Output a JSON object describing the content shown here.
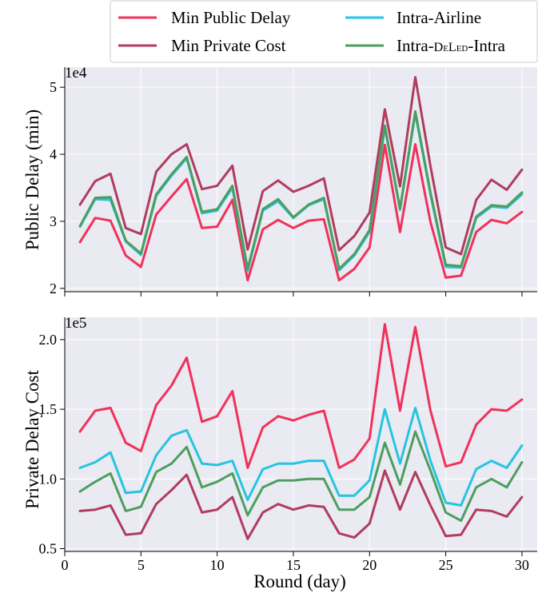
{
  "chart_data": [
    {
      "type": "line",
      "ylabel": "Public Delay (min)",
      "multiplier": "1e4",
      "ylim": [
        1.95,
        5.3
      ],
      "yticks": [
        2,
        3,
        4,
        5
      ],
      "x": [
        1,
        2,
        3,
        4,
        5,
        6,
        7,
        8,
        9,
        10,
        11,
        12,
        13,
        14,
        15,
        16,
        17,
        18,
        19,
        20,
        21,
        22,
        23,
        24,
        25,
        26,
        27,
        28,
        29,
        30
      ],
      "xlim": [
        0,
        31
      ],
      "grid": true,
      "series": [
        {
          "name": "Min Public Delay",
          "color": "#f0325a",
          "values": [
            2.69,
            3.05,
            3.01,
            2.49,
            2.32,
            3.1,
            3.37,
            3.63,
            2.9,
            2.92,
            3.32,
            2.12,
            2.88,
            3.02,
            2.9,
            3.01,
            3.03,
            2.12,
            2.29,
            2.61,
            4.14,
            2.84,
            4.15,
            2.99,
            2.16,
            2.19,
            2.84,
            3.02,
            2.97,
            3.14
          ]
        },
        {
          "name": "Min Private Cost",
          "color": "#b03c5f",
          "values": [
            3.25,
            3.6,
            3.71,
            2.9,
            2.81,
            3.74,
            4.0,
            4.15,
            3.48,
            3.53,
            3.83,
            2.58,
            3.45,
            3.61,
            3.44,
            3.53,
            3.64,
            2.57,
            2.78,
            3.13,
            4.67,
            3.52,
            5.15,
            3.82,
            2.61,
            2.51,
            3.32,
            3.62,
            3.47,
            3.77
          ]
        },
        {
          "name": "Intra-Airline",
          "color": "#27c4e0",
          "values": [
            2.92,
            3.33,
            3.32,
            2.7,
            2.5,
            3.38,
            3.68,
            3.94,
            3.12,
            3.16,
            3.5,
            2.26,
            3.16,
            3.3,
            3.05,
            3.24,
            3.33,
            2.27,
            2.49,
            2.84,
            4.4,
            3.17,
            4.61,
            3.4,
            2.32,
            2.31,
            3.05,
            3.22,
            3.2,
            3.4
          ]
        },
        {
          "name": "Intra-DeLed-Intra",
          "color": "#4d9e5e",
          "values": [
            2.93,
            3.35,
            3.36,
            2.71,
            2.52,
            3.4,
            3.7,
            3.96,
            3.14,
            3.18,
            3.53,
            2.29,
            3.18,
            3.33,
            3.06,
            3.25,
            3.35,
            2.29,
            2.51,
            2.87,
            4.43,
            3.19,
            4.64,
            3.43,
            2.35,
            2.33,
            3.07,
            3.24,
            3.22,
            3.43
          ]
        }
      ]
    },
    {
      "type": "line",
      "ylabel": "Private Delay Cost",
      "xlabel": "Round (day)",
      "multiplier": "1e5",
      "ylim": [
        0.48,
        2.16
      ],
      "yticks": [
        0.5,
        1.0,
        1.5,
        2.0
      ],
      "ytick_labels": [
        "0.5",
        "1.0",
        "1.5",
        "2.0"
      ],
      "xticks": [
        0,
        5,
        10,
        15,
        20,
        25,
        30
      ],
      "x": [
        1,
        2,
        3,
        4,
        5,
        6,
        7,
        8,
        9,
        10,
        11,
        12,
        13,
        14,
        15,
        16,
        17,
        18,
        19,
        20,
        21,
        22,
        23,
        24,
        25,
        26,
        27,
        28,
        29,
        30
      ],
      "xlim": [
        0,
        31
      ],
      "grid": true,
      "series": [
        {
          "name": "Min Public Delay",
          "color": "#f0325a",
          "values": [
            1.34,
            1.49,
            1.51,
            1.26,
            1.2,
            1.53,
            1.67,
            1.87,
            1.41,
            1.45,
            1.63,
            1.08,
            1.37,
            1.45,
            1.42,
            1.46,
            1.49,
            1.08,
            1.14,
            1.29,
            2.11,
            1.49,
            2.09,
            1.49,
            1.09,
            1.12,
            1.39,
            1.5,
            1.49,
            1.57
          ]
        },
        {
          "name": "Intra-Airline",
          "color": "#27c4e0",
          "values": [
            1.08,
            1.12,
            1.19,
            0.9,
            0.91,
            1.17,
            1.31,
            1.35,
            1.11,
            1.1,
            1.13,
            0.85,
            1.07,
            1.11,
            1.11,
            1.13,
            1.13,
            0.88,
            0.88,
            0.99,
            1.5,
            1.11,
            1.51,
            1.13,
            0.83,
            0.81,
            1.07,
            1.13,
            1.08,
            1.24
          ]
        },
        {
          "name": "Intra-DeLed-Intra",
          "color": "#4d9e5e",
          "values": [
            0.91,
            0.98,
            1.04,
            0.77,
            0.8,
            1.05,
            1.11,
            1.23,
            0.94,
            0.98,
            1.04,
            0.74,
            0.94,
            0.99,
            0.99,
            1.0,
            1.0,
            0.78,
            0.78,
            0.87,
            1.26,
            0.96,
            1.34,
            1.06,
            0.76,
            0.7,
            0.94,
            1.0,
            0.94,
            1.12
          ]
        },
        {
          "name": "Min Private Cost",
          "color": "#b03c5f",
          "values": [
            0.77,
            0.78,
            0.81,
            0.6,
            0.61,
            0.82,
            0.92,
            1.03,
            0.76,
            0.78,
            0.87,
            0.57,
            0.76,
            0.82,
            0.78,
            0.81,
            0.8,
            0.61,
            0.58,
            0.68,
            1.06,
            0.78,
            1.05,
            0.81,
            0.59,
            0.6,
            0.78,
            0.77,
            0.73,
            0.87
          ]
        }
      ]
    }
  ],
  "legend": {
    "placement": "top-right",
    "entries": [
      {
        "label": "Min Public Delay",
        "color": "#f0325a"
      },
      {
        "label": "Intra-Airline",
        "color": "#27c4e0"
      },
      {
        "label": "Min Private Cost",
        "color": "#b03c5f"
      },
      {
        "label_pre": "Intra-",
        "label_sc": "DeLed",
        "label_post": "-Intra",
        "color": "#4d9e5e"
      }
    ]
  },
  "style": {
    "background": "#eaeaf2",
    "grid_color": "#ffffff"
  }
}
